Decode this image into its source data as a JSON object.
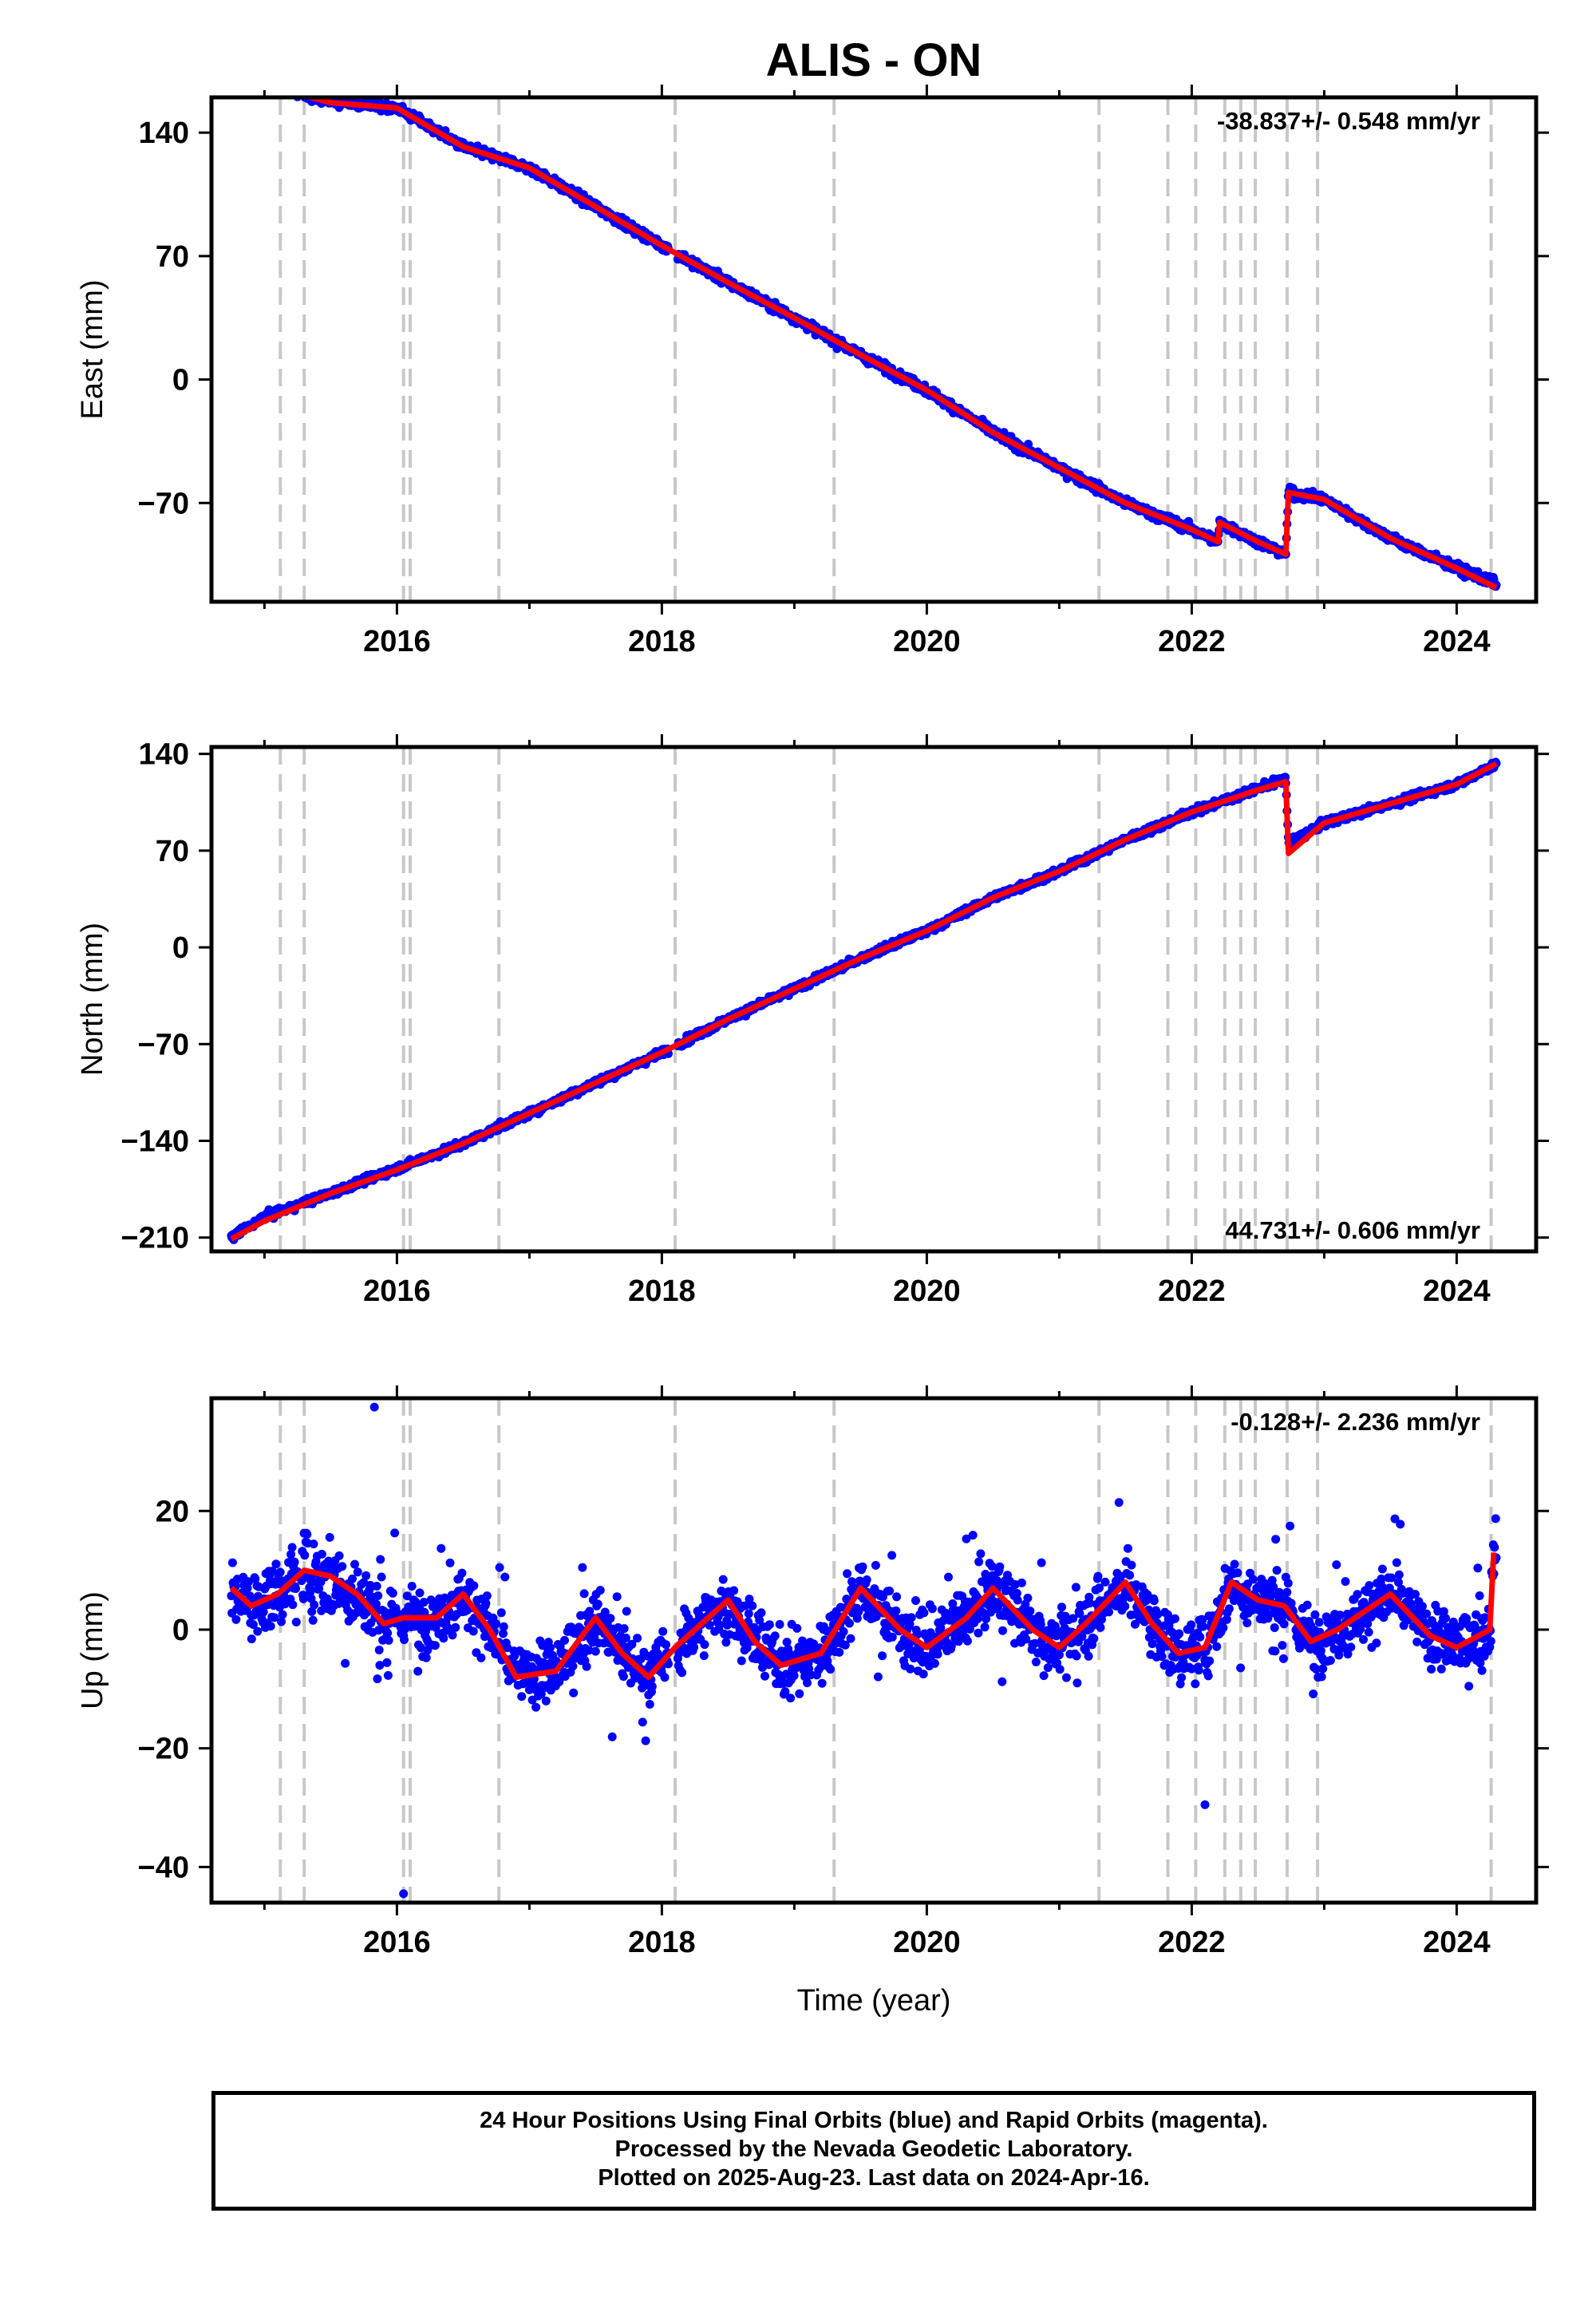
{
  "title": "ALIS - ON",
  "xlabel": "Time (year)",
  "caption": [
    "24 Hour Positions Using Final Orbits (blue) and Rapid Orbits (magenta).",
    "Processed by the Nevada Geodetic Laboratory.",
    "Plotted on 2025-Aug-23. Last data on 2024-Apr-16."
  ],
  "colors": {
    "data": "#0000ff",
    "model": "#ff0000",
    "steps": "#c8c8c8",
    "frame": "#000000"
  },
  "step_epochs": [
    2015.12,
    2015.3,
    2016.05,
    2016.1,
    2016.77,
    2018.1,
    2019.3,
    2021.3,
    2021.82,
    2022.03,
    2022.25,
    2022.37,
    2022.48,
    2022.72,
    2022.95,
    2024.26
  ],
  "chart_data": [
    {
      "type": "scatter",
      "ylabel": "East (mm)",
      "rate_label": "-38.837+/- 0.548 mm/yr",
      "rate_position": "top-right",
      "xlim": [
        2014.6,
        2024.6
      ],
      "ylim": [
        -126,
        160
      ],
      "xticks": [
        2016,
        2018,
        2020,
        2022,
        2024
      ],
      "yticks": [
        -70,
        0,
        70,
        140
      ],
      "series": [
        {
          "role": "data",
          "x": [
            2014.75,
            2015.0,
            2015.5,
            2016.0,
            2016.5,
            2017.0,
            2017.5,
            2018.0,
            2018.5,
            2019.0,
            2019.5,
            2020.0,
            2020.5,
            2021.0,
            2021.5,
            2022.0,
            2022.2,
            2022.21,
            2022.5,
            2022.71,
            2022.73,
            2023.0,
            2023.5,
            2024.0,
            2024.3
          ],
          "y": [
            173,
            167,
            158,
            154,
            132,
            120,
            98,
            76,
            55,
            35,
            14,
            -6,
            -30,
            -50,
            -70,
            -85,
            -92,
            -81,
            -92,
            -99,
            -64,
            -68,
            -90,
            -107,
            -116
          ]
        },
        {
          "role": "model",
          "x": [
            2014.75,
            2015.0,
            2015.5,
            2016.0,
            2016.5,
            2017.0,
            2017.5,
            2018.0,
            2018.5,
            2019.0,
            2019.5,
            2020.0,
            2020.5,
            2021.0,
            2021.5,
            2022.0,
            2022.2,
            2022.21,
            2022.5,
            2022.71,
            2022.73,
            2023.0,
            2023.5,
            2024.0,
            2024.3
          ],
          "y": [
            173,
            167,
            157,
            154,
            132,
            120,
            98,
            76,
            55,
            35,
            14,
            -6,
            -30,
            -50,
            -70,
            -85,
            -92,
            -81,
            -92,
            -99,
            -64,
            -68,
            -90,
            -107,
            -118
          ]
        }
      ]
    },
    {
      "type": "scatter",
      "ylabel": "North (mm)",
      "rate_label": "44.731+/- 0.606 mm/yr",
      "rate_position": "bottom-right",
      "xlim": [
        2014.6,
        2024.6
      ],
      "ylim": [
        -220,
        145
      ],
      "xticks": [
        2016,
        2018,
        2020,
        2022,
        2024
      ],
      "yticks": [
        -210,
        -140,
        -70,
        0,
        70,
        140
      ],
      "series": [
        {
          "role": "data",
          "x": [
            2014.75,
            2015.0,
            2015.5,
            2016.0,
            2016.5,
            2017.0,
            2017.5,
            2018.0,
            2018.5,
            2019.0,
            2019.5,
            2020.0,
            2020.5,
            2021.0,
            2021.5,
            2022.0,
            2022.5,
            2022.71,
            2022.73,
            2023.0,
            2023.5,
            2024.0,
            2024.3
          ],
          "y": [
            -210,
            -195,
            -178,
            -160,
            -142,
            -120,
            -98,
            -76,
            -52,
            -30,
            -8,
            12,
            36,
            55,
            78,
            98,
            115,
            122,
            75,
            90,
            104,
            118,
            133
          ]
        },
        {
          "role": "model",
          "x": [
            2014.75,
            2015.0,
            2015.5,
            2016.0,
            2016.5,
            2017.0,
            2017.5,
            2018.0,
            2018.5,
            2019.0,
            2019.5,
            2020.0,
            2020.5,
            2021.0,
            2021.5,
            2022.0,
            2022.5,
            2022.71,
            2022.73,
            2023.0,
            2023.5,
            2024.0,
            2024.3
          ],
          "y": [
            -211,
            -198,
            -178,
            -161,
            -142,
            -120,
            -98,
            -76,
            -52,
            -30,
            -8,
            12,
            36,
            55,
            78,
            98,
            114,
            120,
            68,
            90,
            104,
            118,
            133
          ]
        }
      ]
    },
    {
      "type": "scatter",
      "ylabel": "Up (mm)",
      "rate_label": "-0.128+/- 2.236 mm/yr",
      "rate_position": "top-right",
      "xlim": [
        2014.6,
        2024.6
      ],
      "ylim": [
        -46,
        39
      ],
      "xticks": [
        2016,
        2018,
        2020,
        2022,
        2024
      ],
      "yticks": [
        -40,
        -20,
        0,
        20
      ],
      "series": [
        {
          "role": "model",
          "x": [
            2014.75,
            2014.9,
            2015.1,
            2015.3,
            2015.5,
            2015.7,
            2015.9,
            2016.05,
            2016.3,
            2016.5,
            2016.7,
            2016.9,
            2017.2,
            2017.5,
            2017.7,
            2017.9,
            2018.1,
            2018.3,
            2018.5,
            2018.7,
            2018.9,
            2019.2,
            2019.5,
            2019.8,
            2020.0,
            2020.3,
            2020.5,
            2020.8,
            2021.0,
            2021.2,
            2021.5,
            2021.7,
            2021.9,
            2022.1,
            2022.3,
            2022.5,
            2022.7,
            2022.9,
            2023.1,
            2023.5,
            2023.8,
            2024.0,
            2024.25,
            2024.28
          ],
          "y": [
            7,
            4,
            6,
            10,
            9,
            6,
            1,
            2,
            2,
            6,
            0,
            -8,
            -7,
            2,
            -4,
            -8,
            -3,
            1,
            5,
            -2,
            -6,
            -4,
            7,
            0,
            -3,
            2,
            7,
            0,
            -3,
            1,
            8,
            1,
            -4,
            -3,
            8,
            5,
            4,
            -2,
            0,
            6,
            -1,
            -3,
            0,
            13
          ]
        }
      ]
    }
  ]
}
